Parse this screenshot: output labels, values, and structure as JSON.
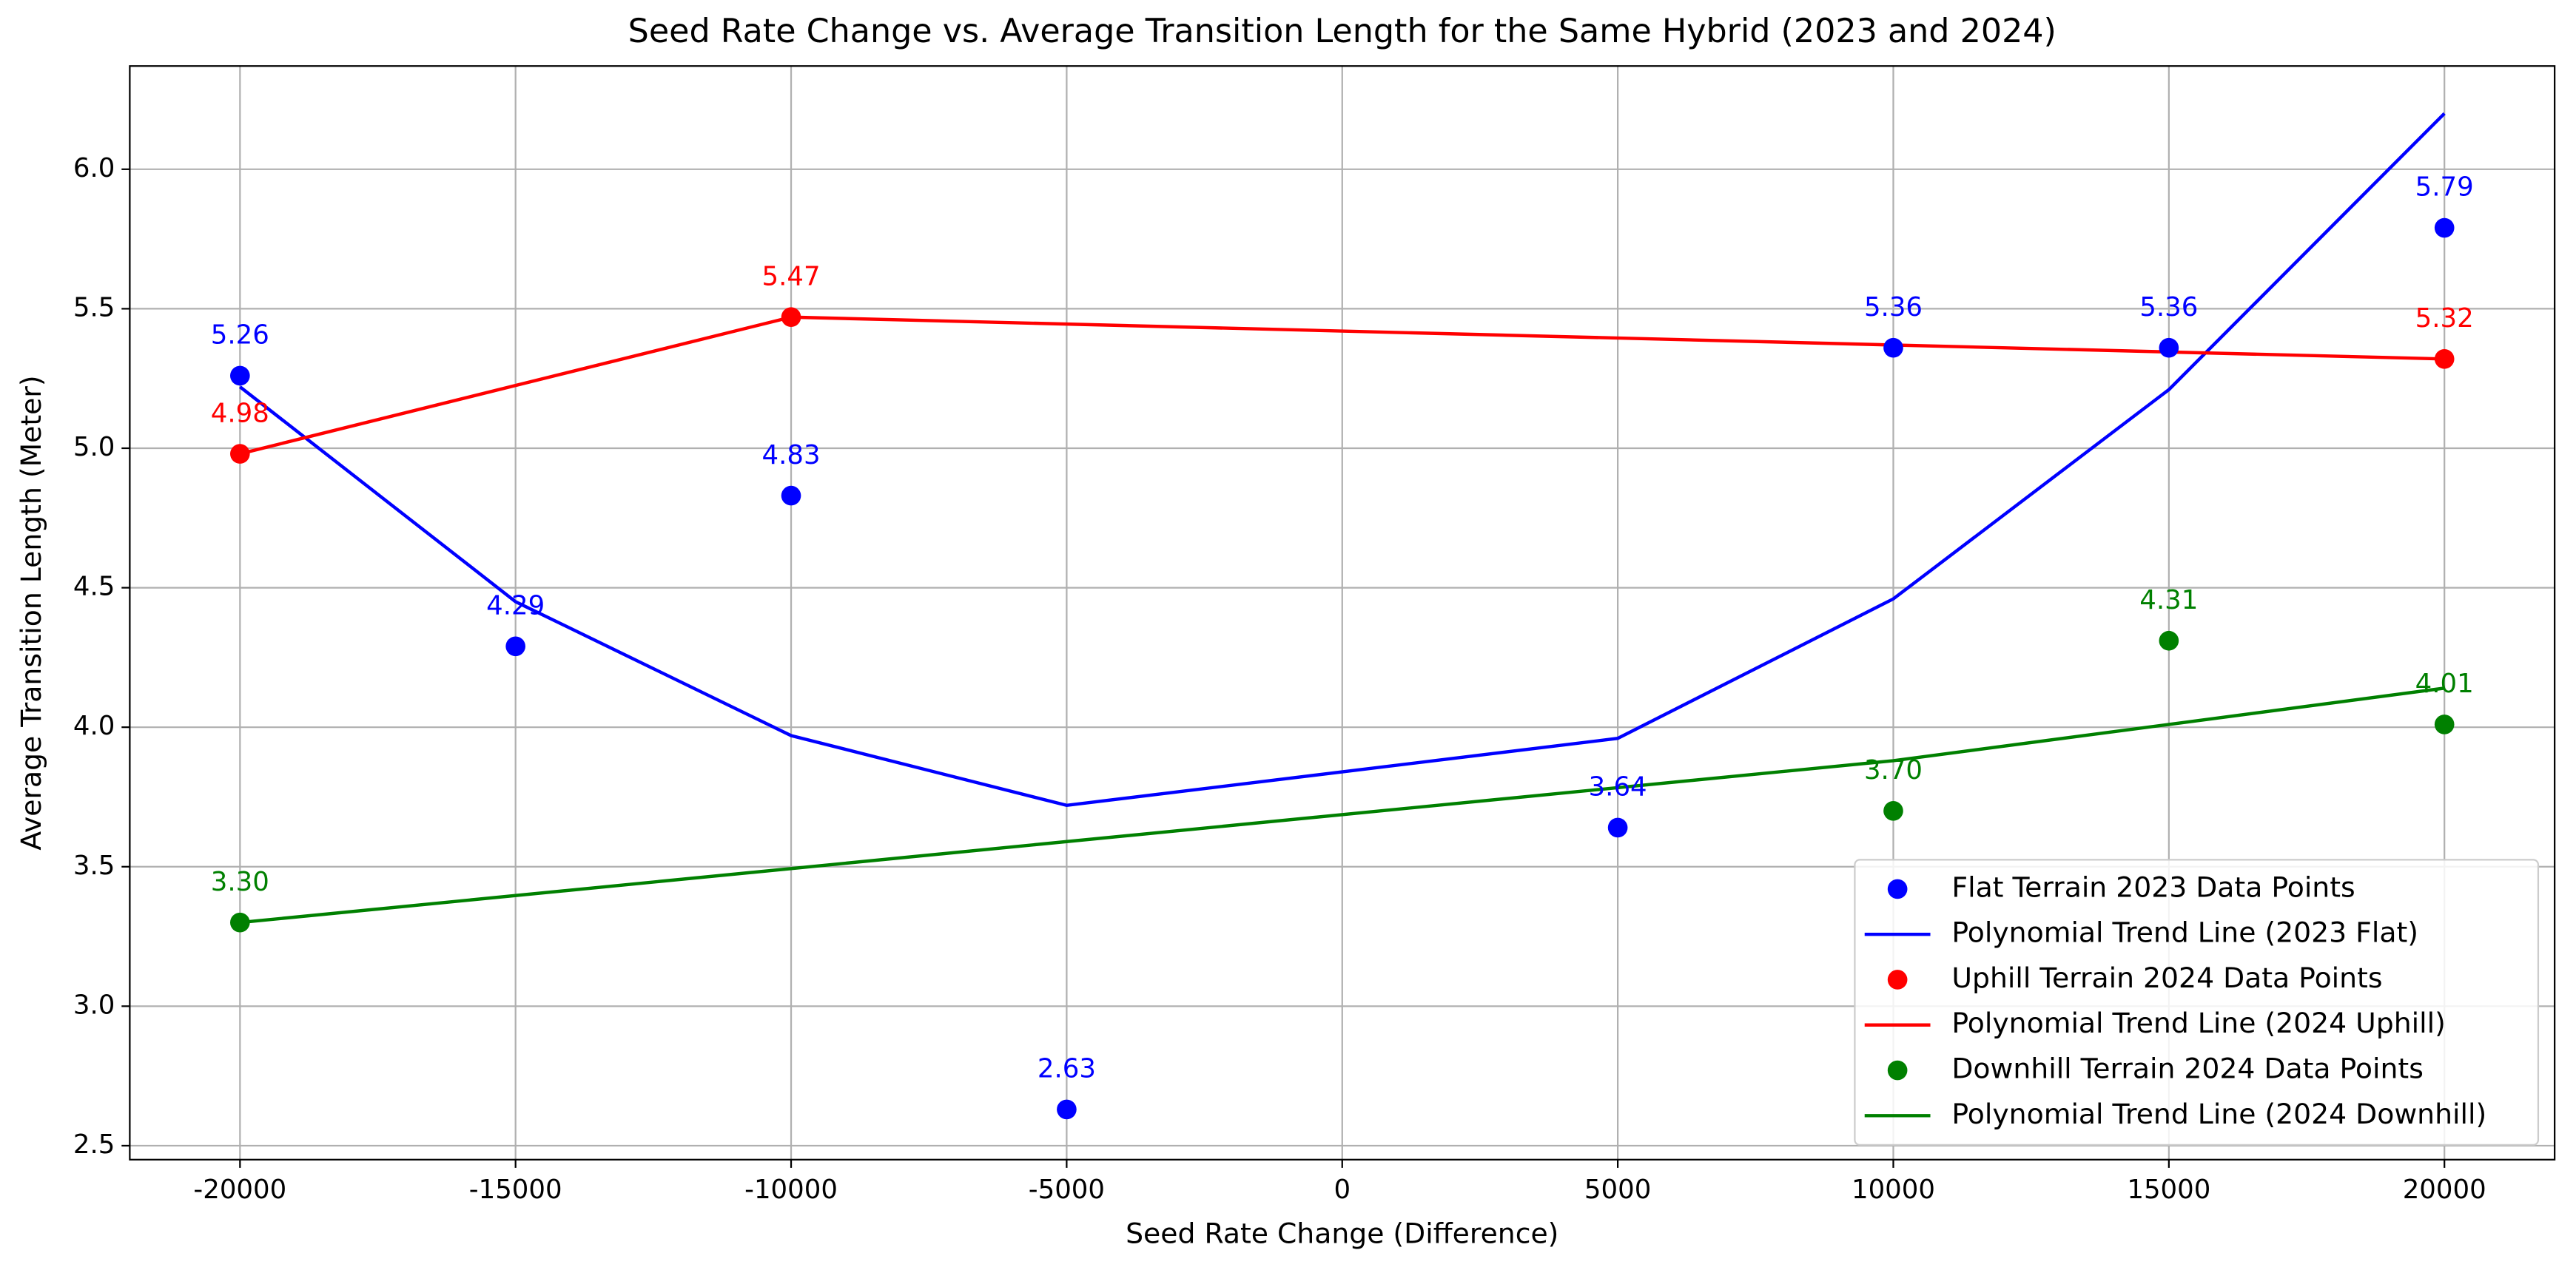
{
  "chart_data": {
    "type": "scatter",
    "title": "Seed Rate Change vs. Average Transition Length for the Same Hybrid (2023 and 2024)",
    "x_label": "Seed Rate Change (Difference)",
    "y_label": "Average Transition Length (Meter)",
    "xlim": [
      -22000,
      22000
    ],
    "ylim": [
      2.45,
      6.37
    ],
    "xticks": [
      -20000,
      -15000,
      -10000,
      -5000,
      0,
      5000,
      10000,
      15000,
      20000
    ],
    "yticks": [
      2.5,
      {
        "value": 3,
        "label": "3.0"
      },
      3.5,
      {
        "value": 4,
        "label": "4.0"
      },
      4.5,
      {
        "value": 5,
        "label": "5.0"
      },
      5.5,
      {
        "value": 6,
        "label": "6.0"
      }
    ],
    "grid": true,
    "legend": "lower right",
    "series": [
      {
        "name": "Flat Terrain 2023 Data Points",
        "type": "scatter",
        "color": "#0000ff",
        "x": [
          -20000,
          -15000,
          -10000,
          -5000,
          5000,
          10000,
          15000,
          20000
        ],
        "values": [
          5.26,
          4.29,
          4.83,
          2.63,
          3.64,
          5.36,
          5.36,
          5.79
        ]
      },
      {
        "name": "Polynomial Trend Line (2023 Flat)",
        "type": "line",
        "color": "#0000ff",
        "x": [
          -20000,
          -15000,
          -10000,
          -5000,
          5000,
          10000,
          15000,
          20000
        ],
        "values": [
          5.22,
          4.45,
          3.97,
          3.72,
          3.96,
          4.46,
          5.21,
          6.2
        ]
      },
      {
        "name": "Uphill Terrain 2024 Data Points",
        "type": "scatter",
        "color": "#ff0000",
        "x": [
          -20000,
          -10000,
          20000
        ],
        "values": [
          4.98,
          5.47,
          5.32
        ]
      },
      {
        "name": "Polynomial Trend Line (2024 Uphill)",
        "type": "line",
        "color": "#ff0000",
        "x": [
          -20000,
          -10000,
          20000
        ],
        "values": [
          4.98,
          5.47,
          5.32
        ]
      },
      {
        "name": "Downhill Terrain 2024 Data Points",
        "type": "scatter",
        "color": "#008000",
        "x": [
          -20000,
          10000,
          15000,
          20000
        ],
        "values": [
          3.3,
          3.7,
          4.31,
          4.01
        ],
        "value_labels": [
          "3.30",
          "3.70",
          "4.31",
          "4.01"
        ]
      },
      {
        "name": "Polynomial Trend Line (2024 Downhill)",
        "type": "line",
        "color": "#008000",
        "x": [
          -20000,
          10000,
          15000,
          20000
        ],
        "values": [
          3.3,
          3.88,
          4.01,
          4.14
        ]
      }
    ]
  }
}
